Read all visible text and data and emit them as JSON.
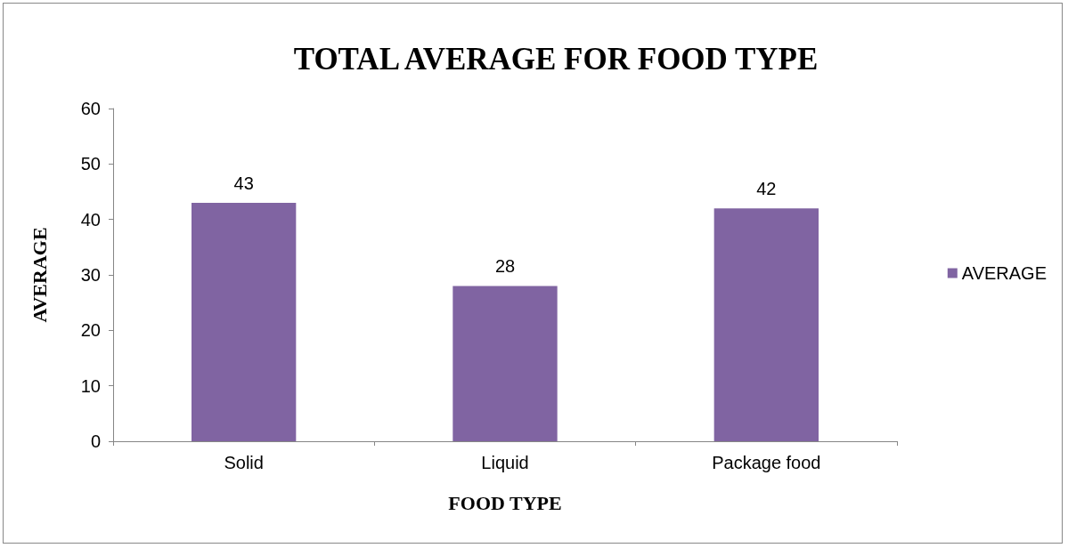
{
  "chart_data": {
    "type": "bar",
    "title": "TOTAL AVERAGE FOR FOOD TYPE",
    "xlabel": "FOOD TYPE",
    "ylabel": "AVERAGE",
    "categories": [
      "Solid",
      "Liquid",
      "Package food"
    ],
    "series": [
      {
        "name": "AVERAGE",
        "color": "#8064a2",
        "values": [
          43,
          28,
          42
        ]
      }
    ],
    "ylim": [
      0,
      60
    ],
    "yticks": [
      0,
      10,
      20,
      30,
      40,
      50,
      60
    ],
    "grid": false,
    "legend": "right",
    "data_labels": true
  }
}
